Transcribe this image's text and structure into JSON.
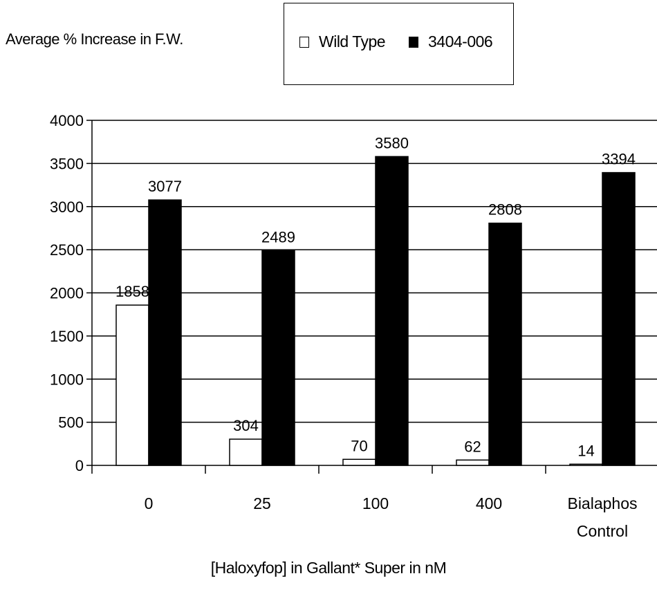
{
  "chart_data": {
    "type": "bar",
    "ylabel": "Average % Increase in F.W.",
    "xlabel": "[Haloxyfop] in Gallant* Super in nM",
    "categories": [
      "0",
      "25",
      "100",
      "400",
      "Bialaphos Control"
    ],
    "series": [
      {
        "name": "Wild Type",
        "color": "#ffffff",
        "values": [
          1858,
          304,
          70,
          62,
          14
        ]
      },
      {
        "name": "3404-006",
        "color": "#000000",
        "values": [
          3077,
          2489,
          3580,
          2808,
          3394
        ]
      }
    ],
    "ylim": [
      0,
      4000
    ],
    "yticks": [
      0,
      500,
      1000,
      1500,
      2000,
      2500,
      3000,
      3500,
      4000
    ],
    "grid": true,
    "legend_position": "top-right"
  }
}
